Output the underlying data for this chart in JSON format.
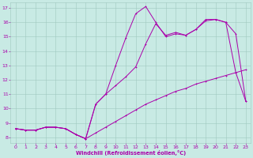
{
  "bg_color": "#c8eae4",
  "grid_color": "#a0c8c0",
  "line_color": "#aa00aa",
  "xlabel": "Windchill (Refroidissement éolien,°C)",
  "xlabel_color": "#aa00aa",
  "ylim": [
    7.6,
    17.4
  ],
  "xlim": [
    -0.5,
    23.5
  ],
  "yticks": [
    8,
    9,
    10,
    11,
    12,
    13,
    14,
    15,
    16,
    17
  ],
  "xticks": [
    0,
    1,
    2,
    3,
    4,
    5,
    6,
    7,
    8,
    9,
    10,
    11,
    12,
    13,
    14,
    15,
    16,
    17,
    18,
    19,
    20,
    21,
    22,
    23
  ],
  "line1_x": [
    0,
    1,
    2,
    3,
    4,
    5,
    6,
    7,
    8,
    9,
    10,
    11,
    12,
    13,
    14,
    15,
    16,
    17,
    18,
    19,
    20,
    21,
    22,
    23
  ],
  "line1_y": [
    8.6,
    8.5,
    8.5,
    8.7,
    8.7,
    8.6,
    8.2,
    7.9,
    8.3,
    8.7,
    9.1,
    9.5,
    9.9,
    10.3,
    10.6,
    10.9,
    11.2,
    11.4,
    11.7,
    11.9,
    12.1,
    12.3,
    12.5,
    12.7
  ],
  "line2_x": [
    0,
    1,
    2,
    3,
    4,
    5,
    6,
    7,
    8,
    9,
    10,
    11,
    12,
    13,
    14,
    15,
    16,
    17,
    18,
    19,
    20,
    21,
    22,
    23
  ],
  "line2_y": [
    8.6,
    8.5,
    8.5,
    8.7,
    8.7,
    8.6,
    8.2,
    7.9,
    10.3,
    11.0,
    13.0,
    14.9,
    16.6,
    17.1,
    16.0,
    15.0,
    15.2,
    15.1,
    15.5,
    16.2,
    16.2,
    16.0,
    15.2,
    10.5
  ],
  "line3_x": [
    0,
    1,
    2,
    3,
    4,
    5,
    6,
    7,
    8,
    9,
    10,
    11,
    12,
    13,
    14,
    15,
    16,
    17,
    18,
    19,
    20,
    21,
    22,
    23
  ],
  "line3_y": [
    8.6,
    8.5,
    8.5,
    8.7,
    8.7,
    8.6,
    8.2,
    7.9,
    10.3,
    11.0,
    11.6,
    12.2,
    12.9,
    14.5,
    15.9,
    15.1,
    15.3,
    15.1,
    15.5,
    16.1,
    16.2,
    16.0,
    12.5,
    10.5
  ]
}
